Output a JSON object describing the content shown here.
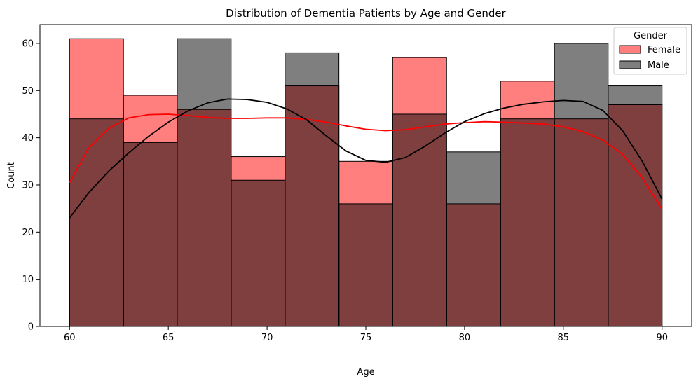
{
  "chart_data": {
    "type": "histogram",
    "title": "Distribution of Dementia Patients by Age and Gender",
    "xlabel": "Age",
    "ylabel": "Count",
    "xlim": [
      58.5,
      91.5
    ],
    "ylim": [
      0,
      64
    ],
    "x_ticks": [
      60,
      65,
      70,
      75,
      80,
      85,
      90
    ],
    "y_ticks": [
      0,
      10,
      20,
      30,
      40,
      50,
      60
    ],
    "bin_edges": [
      60,
      62.73,
      65.45,
      68.18,
      70.91,
      73.64,
      76.36,
      79.09,
      81.82,
      84.55,
      87.27,
      90
    ],
    "series": [
      {
        "name": "Female",
        "color": "#ff0000",
        "values": [
          61,
          49,
          46,
          36,
          51,
          35,
          57,
          26,
          52,
          44,
          47
        ],
        "kde": [
          [
            60,
            30.5
          ],
          [
            61,
            38
          ],
          [
            62,
            42
          ],
          [
            63,
            44.2
          ],
          [
            64,
            44.9
          ],
          [
            65,
            45
          ],
          [
            66,
            44.7
          ],
          [
            67,
            44.3
          ],
          [
            68,
            44.1
          ],
          [
            69,
            44.1
          ],
          [
            70,
            44.2
          ],
          [
            71,
            44.2
          ],
          [
            72,
            43.9
          ],
          [
            73,
            43.3
          ],
          [
            74,
            42.5
          ],
          [
            75,
            41.8
          ],
          [
            76,
            41.5
          ],
          [
            77,
            41.7
          ],
          [
            78,
            42.3
          ],
          [
            79,
            42.9
          ],
          [
            80,
            43.2
          ],
          [
            81,
            43.4
          ],
          [
            82,
            43.3
          ],
          [
            83,
            43.1
          ],
          [
            84,
            42.9
          ],
          [
            85,
            42.3
          ],
          [
            86,
            41.3
          ],
          [
            87,
            39.5
          ],
          [
            88,
            36.5
          ],
          [
            89,
            31.5
          ],
          [
            90,
            24.8
          ]
        ]
      },
      {
        "name": "Male",
        "color": "#000000",
        "values": [
          44,
          39,
          61,
          31,
          58,
          26,
          45,
          37,
          44,
          60,
          51
        ],
        "kde": [
          [
            60,
            23
          ],
          [
            61,
            28.5
          ],
          [
            62,
            33
          ],
          [
            63,
            36.8
          ],
          [
            64,
            40.3
          ],
          [
            65,
            43.3
          ],
          [
            66,
            45.7
          ],
          [
            67,
            47.4
          ],
          [
            68,
            48.2
          ],
          [
            69,
            48.1
          ],
          [
            70,
            47.5
          ],
          [
            71,
            46.1
          ],
          [
            72,
            43.8
          ],
          [
            73,
            40.4
          ],
          [
            74,
            37.2
          ],
          [
            75,
            35.2
          ],
          [
            76,
            34.8
          ],
          [
            77,
            35.8
          ],
          [
            78,
            38.2
          ],
          [
            79,
            41
          ],
          [
            80,
            43.4
          ],
          [
            81,
            45.1
          ],
          [
            82,
            46.3
          ],
          [
            83,
            47.1
          ],
          [
            84,
            47.6
          ],
          [
            85,
            47.9
          ],
          [
            86,
            47.7
          ],
          [
            87,
            45.8
          ],
          [
            88,
            41.5
          ],
          [
            89,
            35
          ],
          [
            90,
            27
          ]
        ]
      }
    ],
    "legend": {
      "title": "Gender",
      "placement": "top-right",
      "entries": [
        "Female",
        "Male"
      ]
    },
    "grid": false
  }
}
